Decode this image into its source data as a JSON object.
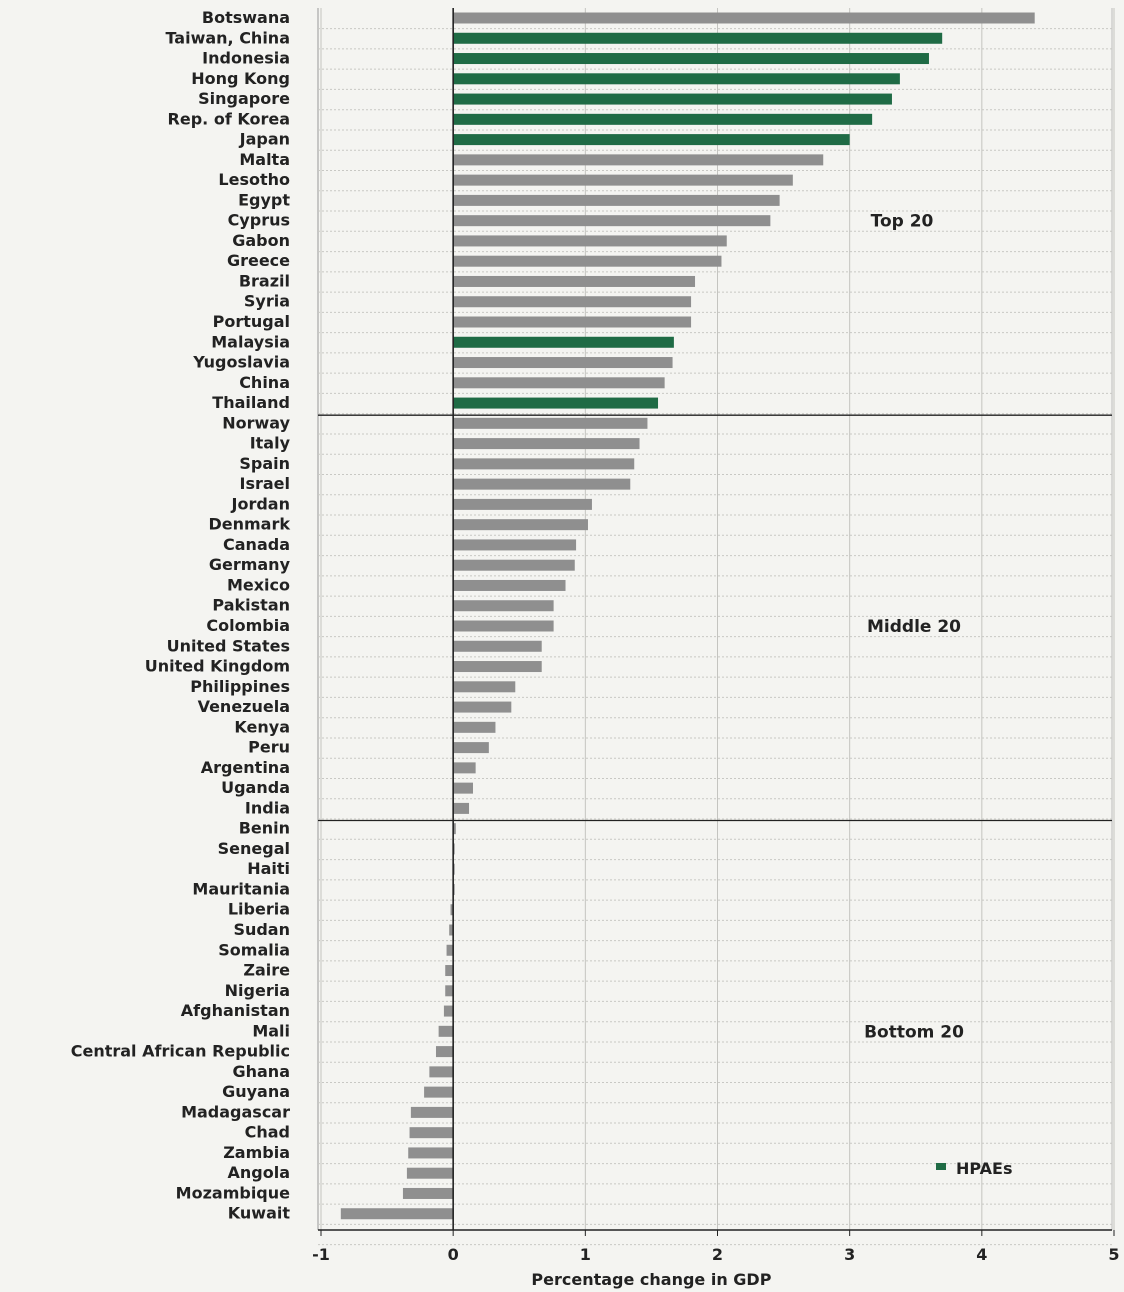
{
  "chart_data": {
    "type": "bar",
    "orientation": "horizontal",
    "xlabel": "Percentage change in GDP",
    "xlim": [
      -1,
      5
    ],
    "xticks": [
      "-1",
      "0",
      "1",
      "2",
      "3",
      "4",
      "5"
    ],
    "grid": true,
    "legend": {
      "placement": "bottom-right",
      "label": "HPAEs"
    },
    "colors": {
      "HPAEs": "#1f6b45",
      "other": "#8f8f8f"
    },
    "groups": [
      {
        "label": "Top 20"
      },
      {
        "label": "Middle 20"
      },
      {
        "label": "Bottom 20"
      }
    ],
    "categories": [
      "Botswana",
      "Taiwan, China",
      "Indonesia",
      "Hong Kong",
      "Singapore",
      "Rep. of Korea",
      "Japan",
      "Malta",
      "Lesotho",
      "Egypt",
      "Cyprus",
      "Gabon",
      "Greece",
      "Brazil",
      "Syria",
      "Portugal",
      "Malaysia",
      "Yugoslavia",
      "China",
      "Thailand",
      "Norway",
      "Italy",
      "Spain",
      "Israel",
      "Jordan",
      "Denmark",
      "Canada",
      "Germany",
      "Mexico",
      "Pakistan",
      "Colombia",
      "United States",
      "United Kingdom",
      "Philippines",
      "Venezuela",
      "Kenya",
      "Peru",
      "Argentina",
      "Uganda",
      "India",
      "Benin",
      "Senegal",
      "Haiti",
      "Mauritania",
      "Liberia",
      "Sudan",
      "Somalia",
      "Zaire",
      "Nigeria",
      "Afghanistan",
      "Mali",
      "Central African Republic",
      "Ghana",
      "Guyana",
      "Madagascar",
      "Chad",
      "Zambia",
      "Angola",
      "Mozambique",
      "Kuwait"
    ],
    "values": [
      4.4,
      3.7,
      3.6,
      3.38,
      3.32,
      3.17,
      3.0,
      2.8,
      2.57,
      2.47,
      2.4,
      2.07,
      2.03,
      1.83,
      1.8,
      1.8,
      1.67,
      1.66,
      1.6,
      1.55,
      1.47,
      1.41,
      1.37,
      1.34,
      1.05,
      1.02,
      0.93,
      0.92,
      0.85,
      0.76,
      0.76,
      0.67,
      0.67,
      0.47,
      0.44,
      0.32,
      0.27,
      0.17,
      0.15,
      0.12,
      0.02,
      0.01,
      0.01,
      0.0,
      -0.02,
      -0.03,
      -0.05,
      -0.06,
      -0.06,
      -0.07,
      -0.11,
      -0.13,
      -0.18,
      -0.22,
      -0.32,
      -0.33,
      -0.34,
      -0.35,
      -0.38,
      -0.85
    ],
    "hpae": [
      "Taiwan, China",
      "Indonesia",
      "Hong Kong",
      "Singapore",
      "Rep. of Korea",
      "Japan",
      "Malaysia",
      "Thailand"
    ]
  }
}
